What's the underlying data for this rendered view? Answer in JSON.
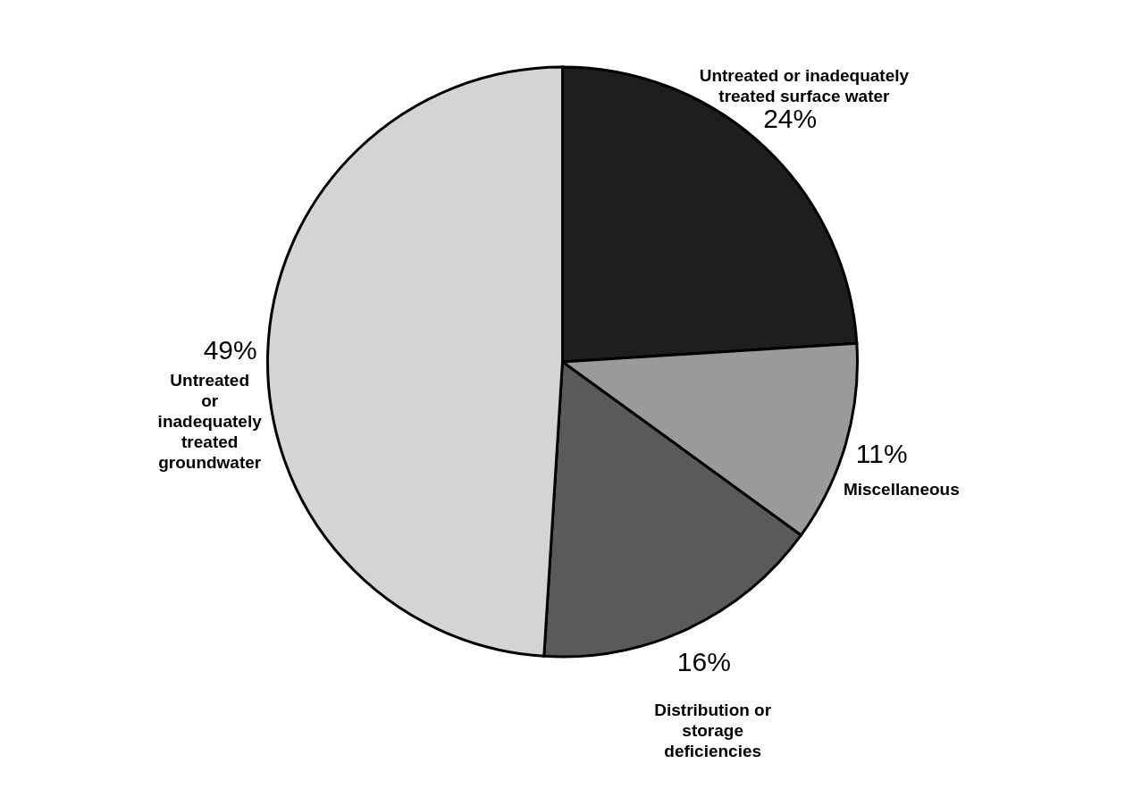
{
  "chart_data": {
    "type": "pie",
    "categories": [
      "Untreated or inadequately treated surface water",
      "Miscellaneous",
      "Distribution or storage deficiencies",
      "Untreated or inadequately treated groundwater"
    ],
    "values": [
      24,
      11,
      16,
      49
    ],
    "value_labels": [
      "24%",
      "11%",
      "16%",
      "49%"
    ],
    "colors": [
      "#1e1e1e",
      "#9a9a9a",
      "#5a5a5a",
      "#d4d4d4"
    ]
  }
}
